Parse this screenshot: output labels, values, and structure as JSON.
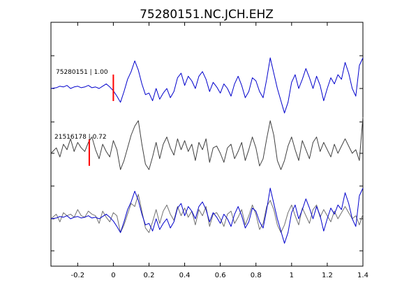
{
  "chart_data": {
    "type": "line",
    "title": "75280151.NC.JCH.EHZ",
    "xlabel": "",
    "ylabel": "",
    "xlim": [
      -0.35,
      1.4
    ],
    "xticks": [
      -0.2,
      0,
      0.2,
      0.4,
      0.6,
      0.8,
      1,
      1.2,
      1.4
    ],
    "xtick_labels": [
      "-0.2",
      "0",
      "0.2",
      "0.4",
      "0.6",
      "0.8",
      "1",
      "1.2",
      "1.4"
    ],
    "grid": false,
    "colors": {
      "primary": "#0000cc",
      "secondary": "#404040",
      "overlay_gray": "#707070",
      "pick": "#ff0000"
    },
    "annotations": [
      {
        "text": "75280151 | 1.00",
        "trace": "top"
      },
      {
        "text": "21516178 | 0.72",
        "trace": "middle"
      }
    ],
    "picks": [
      {
        "trace": "top",
        "x": 0.0
      },
      {
        "trace": "middle",
        "x": -0.135
      }
    ],
    "series": [
      {
        "trace": "top",
        "color": "#0000cc",
        "x": [
          -0.35,
          -0.32,
          -0.3,
          -0.28,
          -0.26,
          -0.24,
          -0.22,
          -0.2,
          -0.18,
          -0.16,
          -0.14,
          -0.12,
          -0.1,
          -0.08,
          -0.06,
          -0.04,
          -0.02,
          0,
          0.02,
          0.04,
          0.06,
          0.08,
          0.1,
          0.12,
          0.14,
          0.16,
          0.18,
          0.2,
          0.22,
          0.24,
          0.26,
          0.28,
          0.3,
          0.32,
          0.34,
          0.36,
          0.38,
          0.4,
          0.42,
          0.44,
          0.46,
          0.48,
          0.5,
          0.52,
          0.54,
          0.56,
          0.58,
          0.6,
          0.62,
          0.64,
          0.66,
          0.68,
          0.7,
          0.72,
          0.74,
          0.76,
          0.78,
          0.8,
          0.82,
          0.84,
          0.86,
          0.88,
          0.9,
          0.92,
          0.94,
          0.96,
          0.98,
          1.0,
          1.02,
          1.04,
          1.06,
          1.08,
          1.1,
          1.12,
          1.14,
          1.16,
          1.18,
          1.2,
          1.22,
          1.24,
          1.26,
          1.28,
          1.3,
          1.32,
          1.34,
          1.36,
          1.38,
          1.4
        ],
        "y": [
          0.0,
          0.05,
          0.15,
          0.1,
          0.2,
          0.0,
          0.1,
          0.15,
          0.05,
          0.1,
          0.2,
          0.05,
          0.1,
          0.0,
          0.15,
          0.3,
          0.1,
          -0.15,
          -0.5,
          -0.9,
          -0.2,
          0.6,
          1.1,
          1.8,
          1.2,
          0.3,
          -0.4,
          -0.3,
          -0.8,
          0.0,
          -0.7,
          -0.3,
          0.0,
          -0.6,
          -0.2,
          0.7,
          1.0,
          0.2,
          0.8,
          0.5,
          0.0,
          0.8,
          1.1,
          0.6,
          -0.2,
          0.4,
          0.1,
          -0.3,
          0.3,
          0.0,
          -0.5,
          0.3,
          0.8,
          0.2,
          -0.6,
          -0.2,
          0.7,
          0.5,
          -0.2,
          -0.6,
          0.6,
          2.0,
          1.0,
          0.0,
          -0.8,
          -1.6,
          -0.9,
          0.4,
          0.9,
          0.0,
          0.6,
          1.3,
          0.7,
          0.0,
          0.8,
          0.2,
          -0.8,
          0.0,
          0.7,
          0.3,
          0.9,
          0.6,
          1.7,
          1.0,
          0.0,
          -0.5,
          1.5,
          2.0
        ]
      },
      {
        "trace": "middle",
        "color": "#404040",
        "x": [
          -0.35,
          -0.32,
          -0.3,
          -0.28,
          -0.26,
          -0.24,
          -0.22,
          -0.2,
          -0.18,
          -0.16,
          -0.14,
          -0.12,
          -0.1,
          -0.08,
          -0.06,
          -0.04,
          -0.02,
          0,
          0.02,
          0.04,
          0.06,
          0.08,
          0.1,
          0.12,
          0.14,
          0.16,
          0.18,
          0.2,
          0.22,
          0.24,
          0.26,
          0.28,
          0.3,
          0.32,
          0.34,
          0.36,
          0.38,
          0.4,
          0.42,
          0.44,
          0.46,
          0.48,
          0.5,
          0.52,
          0.54,
          0.56,
          0.58,
          0.6,
          0.62,
          0.64,
          0.66,
          0.68,
          0.7,
          0.72,
          0.74,
          0.76,
          0.78,
          0.8,
          0.82,
          0.84,
          0.86,
          0.88,
          0.9,
          0.92,
          0.94,
          0.96,
          0.98,
          1.0,
          1.02,
          1.04,
          1.06,
          1.08,
          1.1,
          1.12,
          1.14,
          1.16,
          1.18,
          1.2,
          1.22,
          1.24,
          1.26,
          1.28,
          1.3,
          1.32,
          1.34,
          1.36,
          1.38,
          1.4
        ],
        "y": [
          0.0,
          0.3,
          -0.2,
          0.5,
          0.2,
          0.8,
          0.1,
          0.6,
          0.3,
          0.1,
          0.6,
          0.9,
          0.2,
          -0.3,
          0.5,
          0.1,
          -0.2,
          0.7,
          0.2,
          -0.9,
          -0.4,
          0.3,
          1.0,
          1.5,
          1.8,
          0.5,
          -0.6,
          -0.9,
          -0.2,
          0.6,
          -0.3,
          0.5,
          0.9,
          0.3,
          -0.1,
          0.8,
          0.2,
          0.7,
          0.1,
          0.5,
          -0.4,
          0.6,
          0.2,
          0.8,
          -0.5,
          0.3,
          0.4,
          0.0,
          -0.5,
          0.3,
          0.5,
          -0.3,
          0.1,
          0.6,
          -0.4,
          0.2,
          0.9,
          0.3,
          -0.7,
          -0.3,
          0.8,
          1.8,
          1.0,
          -0.4,
          -0.9,
          -0.4,
          0.4,
          0.9,
          0.2,
          -0.4,
          0.7,
          0.2,
          -0.3,
          0.6,
          0.9,
          0.1,
          0.6,
          0.2,
          -0.2,
          0.5,
          0.0,
          0.4,
          0.8,
          0.4,
          0.0,
          0.2,
          -0.4,
          2.0
        ]
      },
      {
        "trace": "bottom-gray",
        "color": "#707070",
        "x": [
          -0.35,
          -0.32,
          -0.3,
          -0.28,
          -0.26,
          -0.24,
          -0.22,
          -0.2,
          -0.18,
          -0.16,
          -0.14,
          -0.12,
          -0.1,
          -0.08,
          -0.06,
          -0.04,
          -0.02,
          0,
          0.02,
          0.04,
          0.06,
          0.08,
          0.1,
          0.12,
          0.14,
          0.16,
          0.18,
          0.2,
          0.22,
          0.24,
          0.26,
          0.28,
          0.3,
          0.32,
          0.34,
          0.36,
          0.38,
          0.4,
          0.42,
          0.44,
          0.46,
          0.48,
          0.5,
          0.52,
          0.54,
          0.56,
          0.58,
          0.6,
          0.62,
          0.64,
          0.66,
          0.68,
          0.7,
          0.72,
          0.74,
          0.76,
          0.78,
          0.8,
          0.82,
          0.84,
          0.86,
          0.88,
          0.9,
          0.92,
          0.94,
          0.96,
          0.98,
          1.0,
          1.02,
          1.04,
          1.06,
          1.08,
          1.1,
          1.12,
          1.14,
          1.16,
          1.18,
          1.2,
          1.22,
          1.24,
          1.26,
          1.28,
          1.3,
          1.32,
          1.34,
          1.36,
          1.38,
          1.4
        ],
        "y": [
          0.0,
          0.3,
          -0.2,
          0.4,
          0.2,
          0.3,
          0.1,
          0.6,
          0.2,
          0.1,
          0.5,
          0.3,
          0.2,
          -0.3,
          0.5,
          0.1,
          -0.2,
          0.4,
          0.2,
          -0.9,
          -0.4,
          0.3,
          1.0,
          0.8,
          1.6,
          0.5,
          -0.6,
          -0.9,
          -0.2,
          0.6,
          -0.3,
          0.5,
          0.9,
          0.3,
          -0.1,
          0.8,
          0.2,
          0.7,
          0.1,
          0.5,
          -0.4,
          0.6,
          0.2,
          0.8,
          -0.5,
          0.3,
          0.4,
          0.0,
          -0.5,
          0.3,
          0.5,
          -0.3,
          0.1,
          0.6,
          -0.4,
          0.2,
          0.9,
          0.3,
          -0.7,
          -0.3,
          0.8,
          1.2,
          0.6,
          -0.4,
          -0.9,
          -0.4,
          0.4,
          0.9,
          0.2,
          -0.4,
          0.7,
          0.2,
          -0.3,
          0.6,
          0.9,
          0.1,
          0.6,
          0.2,
          -0.2,
          0.5,
          0.0,
          0.4,
          0.8,
          0.4,
          0.0,
          0.2,
          -0.4,
          0.3
        ]
      },
      {
        "trace": "bottom-blue",
        "color": "#0000cc",
        "x": [
          -0.35,
          -0.32,
          -0.3,
          -0.28,
          -0.26,
          -0.24,
          -0.22,
          -0.2,
          -0.18,
          -0.16,
          -0.14,
          -0.12,
          -0.1,
          -0.08,
          -0.06,
          -0.04,
          -0.02,
          0,
          0.02,
          0.04,
          0.06,
          0.08,
          0.1,
          0.12,
          0.14,
          0.16,
          0.18,
          0.2,
          0.22,
          0.24,
          0.26,
          0.28,
          0.3,
          0.32,
          0.34,
          0.36,
          0.38,
          0.4,
          0.42,
          0.44,
          0.46,
          0.48,
          0.5,
          0.52,
          0.54,
          0.56,
          0.58,
          0.6,
          0.62,
          0.64,
          0.66,
          0.68,
          0.7,
          0.72,
          0.74,
          0.76,
          0.78,
          0.8,
          0.82,
          0.84,
          0.86,
          0.88,
          0.9,
          0.92,
          0.94,
          0.96,
          0.98,
          1.0,
          1.02,
          1.04,
          1.06,
          1.08,
          1.1,
          1.12,
          1.14,
          1.16,
          1.18,
          1.2,
          1.22,
          1.24,
          1.26,
          1.28,
          1.3,
          1.32,
          1.34,
          1.36,
          1.38,
          1.4
        ],
        "y": [
          0.0,
          0.05,
          0.15,
          0.1,
          0.2,
          0.0,
          0.1,
          0.15,
          0.05,
          0.1,
          0.2,
          0.05,
          0.1,
          0.0,
          0.15,
          0.3,
          0.1,
          -0.15,
          -0.5,
          -0.9,
          -0.2,
          0.6,
          1.1,
          1.8,
          1.2,
          0.3,
          -0.4,
          -0.3,
          -0.8,
          0.0,
          -0.7,
          -0.3,
          0.0,
          -0.6,
          -0.2,
          0.7,
          1.0,
          0.2,
          0.8,
          0.5,
          0.0,
          0.8,
          1.1,
          0.6,
          -0.2,
          0.4,
          0.1,
          -0.3,
          0.3,
          0.0,
          -0.5,
          0.3,
          0.8,
          0.2,
          -0.6,
          -0.2,
          0.7,
          0.5,
          -0.2,
          -0.6,
          0.6,
          2.0,
          1.0,
          0.0,
          -0.8,
          -1.6,
          -0.9,
          0.4,
          0.9,
          0.0,
          0.6,
          1.3,
          0.7,
          0.0,
          0.8,
          0.2,
          -0.8,
          0.0,
          0.7,
          0.3,
          0.9,
          0.6,
          1.7,
          1.0,
          0.0,
          -0.5,
          1.5,
          2.0
        ]
      }
    ]
  }
}
